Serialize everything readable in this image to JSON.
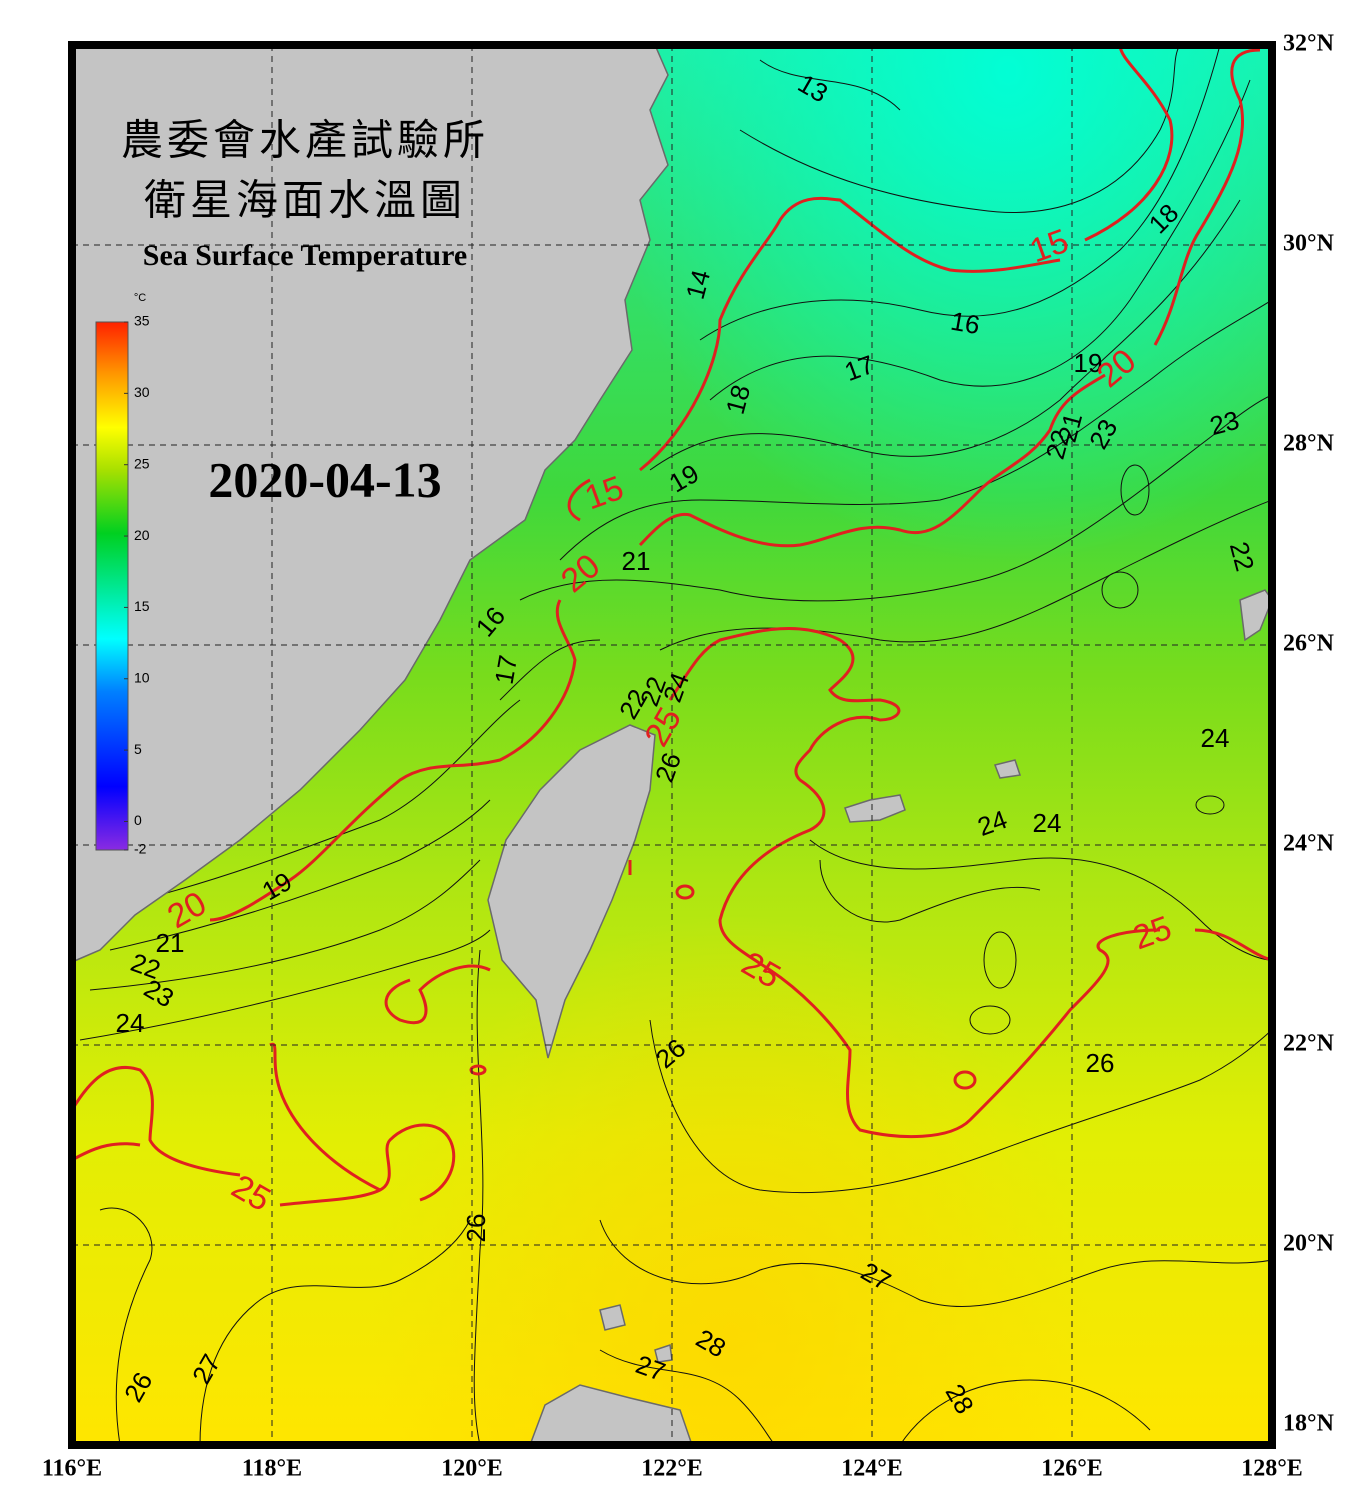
{
  "header": {
    "title_zh_1": "農委會水產試驗所",
    "title_zh_2": "衛星海面水溫圖",
    "title_en": "Sea Surface Temperature",
    "date": "2020-04-13"
  },
  "colorbar": {
    "unit": "°C",
    "range": [
      -2,
      35
    ],
    "ticks": [
      35,
      30,
      25,
      20,
      15,
      10,
      5,
      0,
      -2
    ]
  },
  "axes": {
    "lat_labels": [
      "32°N",
      "30°N",
      "28°N",
      "26°N",
      "24°N",
      "22°N",
      "20°N",
      "18°N"
    ],
    "lon_labels": [
      "116°E",
      "118°E",
      "120°E",
      "122°E",
      "124°E",
      "126°E",
      "128°E"
    ]
  },
  "contour_labels": [
    13,
    14,
    15,
    18,
    16,
    17,
    19,
    20,
    18,
    23,
    23,
    22,
    21,
    15,
    19,
    21,
    20,
    22,
    16,
    17,
    22,
    22,
    24,
    25,
    26,
    24,
    24,
    24,
    19,
    20,
    21,
    22,
    23,
    24,
    25,
    25,
    26,
    26,
    25,
    26,
    27,
    28,
    27,
    28,
    26,
    27
  ]
}
